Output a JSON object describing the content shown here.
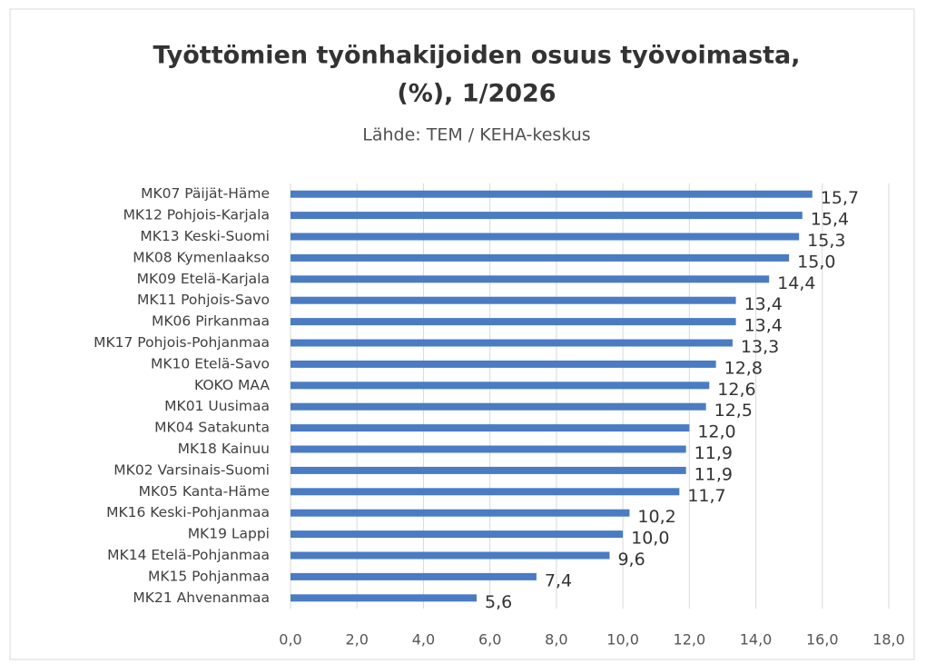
{
  "chart_data": {
    "type": "barh",
    "title": [
      "Työttömien työnhakijoiden osuus työvoimasta,",
      "(%), 1/2026"
    ],
    "subtitle": "Lähde: TEM / KEHA-keskus",
    "categories": [
      "MK07 Päijät-Häme",
      "MK12 Pohjois-Karjala",
      "MK13 Keski-Suomi",
      "MK08 Kymenlaakso",
      "MK09 Etelä-Karjala",
      "MK11 Pohjois-Savo",
      "MK06 Pirkanmaa",
      "MK17 Pohjois-Pohjanmaa",
      "MK10 Etelä-Savo",
      "KOKO MAA",
      "MK01 Uusimaa",
      "MK04 Satakunta",
      "MK18 Kainuu",
      "MK02 Varsinais-Suomi",
      "MK05 Kanta-Häme",
      "MK16 Keski-Pohjanmaa",
      "MK19 Lappi",
      "MK14 Etelä-Pohjanmaa",
      "MK15 Pohjanmaa",
      "MK21 Ahvenanmaa"
    ],
    "values": [
      15.7,
      15.4,
      15.3,
      15.0,
      14.4,
      13.4,
      13.4,
      13.3,
      12.8,
      12.6,
      12.5,
      12.0,
      11.9,
      11.9,
      11.7,
      10.2,
      10.0,
      9.6,
      7.4,
      5.6
    ],
    "value_labels": [
      "15,7",
      "15,4",
      "15,3",
      "15,0",
      "14,4",
      "13,4",
      "13,4",
      "13,3",
      "12,8",
      "12,6",
      "12,5",
      "12,0",
      "11,9",
      "11,9",
      "11,7",
      "10,2",
      "10,0",
      "9,6",
      "7,4",
      "5,6"
    ],
    "color": "#4a7cc4",
    "xlim": [
      0,
      18
    ],
    "xticks": [
      {
        "value": 0,
        "label": "0,0"
      },
      {
        "value": 2,
        "label": "2,0"
      },
      {
        "value": 4,
        "label": "4,0"
      },
      {
        "value": 6,
        "label": "6,0"
      },
      {
        "value": 8,
        "label": "8,0"
      },
      {
        "value": 10,
        "label": "10,0"
      },
      {
        "value": 12,
        "label": "12,0"
      },
      {
        "value": 14,
        "label": "14,0"
      },
      {
        "value": 16,
        "label": "16,0"
      },
      {
        "value": 18,
        "label": "18,0"
      }
    ],
    "grid": true
  }
}
